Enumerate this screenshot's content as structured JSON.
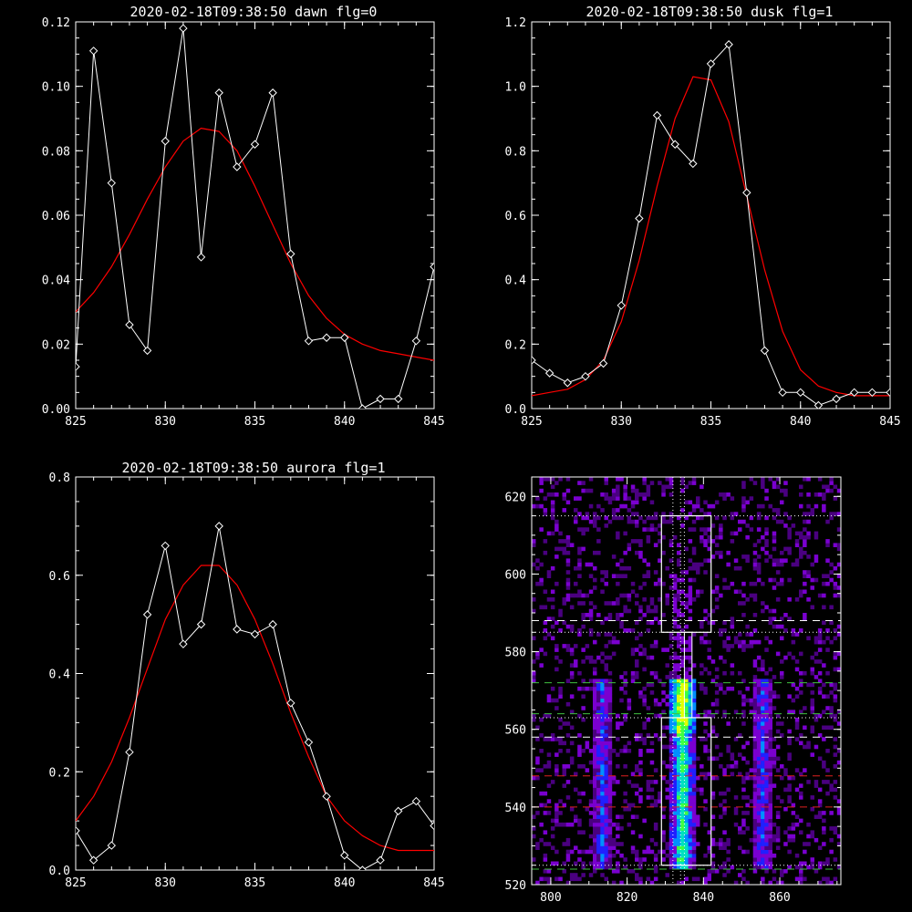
{
  "chart_data": [
    {
      "type": "line",
      "title": "2020-02-18T09:38:50 dawn flg=0",
      "xlim": [
        825,
        845
      ],
      "ylim": [
        0,
        0.12
      ],
      "xticks": [
        "825",
        "830",
        "835",
        "840",
        "845"
      ],
      "yticks": [
        "0.00",
        "0.02",
        "0.04",
        "0.06",
        "0.08",
        "0.10",
        "0.12"
      ],
      "series": [
        {
          "style": "white line with diamond markers",
          "color": "#ffffff",
          "x": [
            825,
            826,
            827,
            828,
            829,
            830,
            831,
            832,
            833,
            834,
            835,
            836,
            837,
            838,
            839,
            840,
            841,
            842,
            843,
            844,
            845
          ],
          "y": [
            0.013,
            0.111,
            0.07,
            0.026,
            0.018,
            0.083,
            0.118,
            0.047,
            0.098,
            0.075,
            0.082,
            0.098,
            0.048,
            0.021,
            0.022,
            0.022,
            0.0,
            0.003,
            0.003,
            0.021,
            0.044
          ]
        },
        {
          "style": "red fitted curve",
          "color": "#ff0000",
          "x": [
            825,
            826,
            827,
            828,
            829,
            830,
            831,
            832,
            833,
            834,
            835,
            836,
            837,
            838,
            839,
            840,
            841,
            842,
            843,
            844,
            845
          ],
          "y": [
            0.03,
            0.036,
            0.044,
            0.054,
            0.065,
            0.075,
            0.083,
            0.087,
            0.086,
            0.08,
            0.069,
            0.057,
            0.045,
            0.035,
            0.028,
            0.023,
            0.02,
            0.018,
            0.017,
            0.016,
            0.015
          ]
        }
      ]
    },
    {
      "type": "line",
      "title": "2020-02-18T09:38:50 dusk flg=1",
      "xlim": [
        825,
        845
      ],
      "ylim": [
        0,
        1.2
      ],
      "xticks": [
        "825",
        "830",
        "835",
        "840",
        "845"
      ],
      "yticks": [
        "0.0",
        "0.2",
        "0.4",
        "0.6",
        "0.8",
        "1.0",
        "1.2"
      ],
      "series": [
        {
          "style": "white line with diamond markers",
          "color": "#ffffff",
          "x": [
            825,
            826,
            827,
            828,
            829,
            830,
            831,
            832,
            833,
            834,
            835,
            836,
            837,
            838,
            839,
            840,
            841,
            842,
            843,
            844,
            845
          ],
          "y": [
            0.15,
            0.11,
            0.08,
            0.1,
            0.14,
            0.32,
            0.59,
            0.91,
            0.82,
            0.76,
            1.07,
            1.13,
            0.67,
            0.18,
            0.05,
            0.05,
            0.01,
            0.03,
            0.05,
            0.05,
            0.05
          ]
        },
        {
          "style": "red fitted curve",
          "color": "#ff0000",
          "x": [
            825,
            826,
            827,
            828,
            829,
            830,
            831,
            832,
            833,
            834,
            835,
            836,
            837,
            838,
            839,
            840,
            841,
            842,
            843,
            844,
            845
          ],
          "y": [
            0.04,
            0.05,
            0.06,
            0.09,
            0.15,
            0.27,
            0.46,
            0.69,
            0.9,
            1.03,
            1.02,
            0.89,
            0.66,
            0.43,
            0.24,
            0.12,
            0.07,
            0.05,
            0.04,
            0.04,
            0.04
          ]
        }
      ]
    },
    {
      "type": "line",
      "title": "2020-02-18T09:38:50 aurora flg=1",
      "xlim": [
        825,
        845
      ],
      "ylim": [
        0,
        0.8
      ],
      "xticks": [
        "825",
        "830",
        "835",
        "840",
        "845"
      ],
      "yticks": [
        "0.0",
        "0.2",
        "0.4",
        "0.6",
        "0.8"
      ],
      "series": [
        {
          "style": "white line with diamond markers",
          "color": "#ffffff",
          "x": [
            825,
            826,
            827,
            828,
            829,
            830,
            831,
            832,
            833,
            834,
            835,
            836,
            837,
            838,
            839,
            840,
            841,
            842,
            843,
            844,
            845
          ],
          "y": [
            0.08,
            0.02,
            0.05,
            0.24,
            0.52,
            0.66,
            0.46,
            0.5,
            0.7,
            0.49,
            0.48,
            0.5,
            0.34,
            0.26,
            0.15,
            0.03,
            0.0,
            0.02,
            0.12,
            0.14,
            0.09
          ]
        },
        {
          "style": "red fitted curve",
          "color": "#ff0000",
          "x": [
            825,
            826,
            827,
            828,
            829,
            830,
            831,
            832,
            833,
            834,
            835,
            836,
            837,
            838,
            839,
            840,
            841,
            842,
            843,
            844,
            845
          ],
          "y": [
            0.1,
            0.15,
            0.22,
            0.31,
            0.41,
            0.51,
            0.58,
            0.62,
            0.62,
            0.58,
            0.51,
            0.42,
            0.32,
            0.23,
            0.15,
            0.1,
            0.07,
            0.05,
            0.04,
            0.04,
            0.04
          ]
        }
      ]
    },
    {
      "type": "heatmap",
      "title": "",
      "xlim": [
        795,
        876
      ],
      "ylim": [
        520,
        625
      ],
      "xticks": [
        "800",
        "820",
        "840",
        "860"
      ],
      "yticks": [
        "520",
        "540",
        "560",
        "580",
        "600",
        "620"
      ],
      "colormap": [
        "#000000",
        "#4a0080",
        "#7a00d0",
        "#2020ff",
        "#0090ff",
        "#00e0c0",
        "#40ff40",
        "#e0ff00"
      ],
      "bright_columns_x": [
        813,
        834,
        855
      ],
      "rectangles": [
        {
          "x0": 829,
          "x1": 842,
          "y0": 585,
          "y1": 615,
          "color": "#ffffff"
        },
        {
          "x0": 829,
          "x1": 842,
          "y0": 525,
          "y1": 563,
          "color": "#ffffff"
        }
      ],
      "hlines": [
        {
          "y": 615,
          "color": "#ffffff",
          "style": "dotted"
        },
        {
          "y": 588,
          "color": "#ffffff",
          "style": "dashed"
        },
        {
          "y": 585,
          "color": "#ffffff",
          "style": "dotted"
        },
        {
          "y": 572,
          "color": "#40c040",
          "style": "dashed"
        },
        {
          "y": 564,
          "color": "#40c040",
          "style": "dashed"
        },
        {
          "y": 563,
          "color": "#ffffff",
          "style": "dotted"
        },
        {
          "y": 558,
          "color": "#ffffff",
          "style": "dashed"
        },
        {
          "y": 548,
          "color": "#e02020",
          "style": "dashed"
        },
        {
          "y": 540,
          "color": "#e02020",
          "style": "dashed"
        },
        {
          "y": 525,
          "color": "#ffffff",
          "style": "dotted"
        },
        {
          "y": 524,
          "color": "#40c040",
          "style": "dashed"
        }
      ],
      "vlines": [
        {
          "x": 832,
          "color": "#ffffff",
          "style": "dotted"
        },
        {
          "x": 834,
          "color": "#ffffff",
          "style": "dotted"
        },
        {
          "x": 835,
          "color": "#ffffff",
          "style": "dotted"
        }
      ]
    }
  ]
}
